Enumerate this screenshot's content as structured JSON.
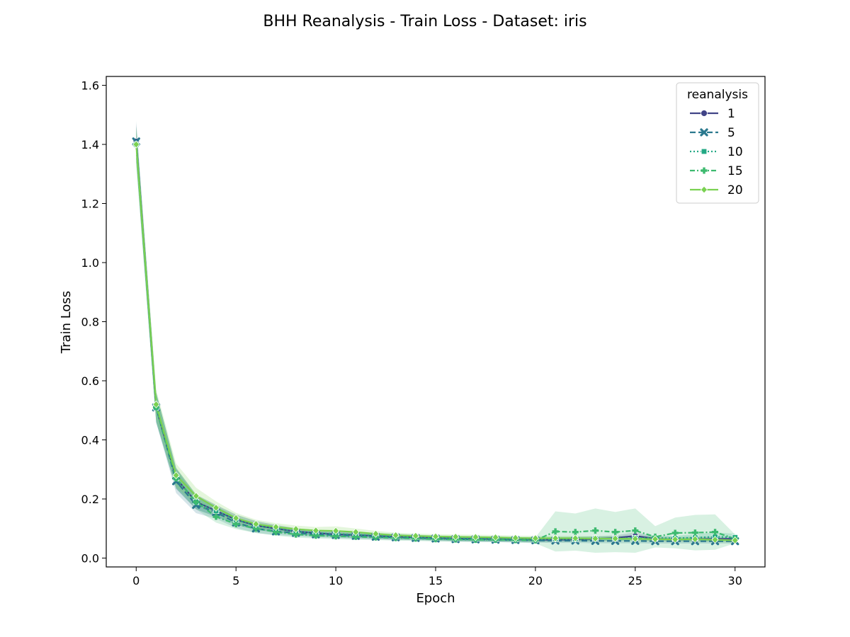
{
  "chart_data": {
    "type": "line",
    "title": "BHH Reanalysis - Train Loss - Dataset: iris",
    "xlabel": "Epoch",
    "ylabel": "Train Loss",
    "xlim": [
      -1.5,
      31.5
    ],
    "ylim": [
      -0.03,
      1.63
    ],
    "xticks": [
      0,
      5,
      10,
      15,
      20,
      25,
      30
    ],
    "yticks": [
      0.0,
      0.2,
      0.4,
      0.6,
      0.8,
      1.0,
      1.2,
      1.4,
      1.6
    ],
    "ytick_labels": [
      "0.0",
      "0.2",
      "0.4",
      "0.6",
      "0.8",
      "1.0",
      "1.2",
      "1.4",
      "1.6"
    ],
    "grid": false,
    "legend": {
      "title": "reanalysis",
      "placement": "top-right"
    },
    "x": [
      0,
      1,
      2,
      3,
      4,
      5,
      6,
      7,
      8,
      9,
      10,
      11,
      12,
      13,
      14,
      15,
      16,
      17,
      18,
      19,
      20,
      21,
      22,
      23,
      24,
      25,
      26,
      27,
      28,
      29,
      30
    ],
    "series": [
      {
        "name": "1",
        "color": "#414487",
        "dash": "solid",
        "marker": "circle",
        "values": [
          1.41,
          0.51,
          0.27,
          0.19,
          0.16,
          0.13,
          0.11,
          0.1,
          0.09,
          0.085,
          0.08,
          0.078,
          0.075,
          0.072,
          0.07,
          0.068,
          0.066,
          0.065,
          0.064,
          0.063,
          0.062,
          0.062,
          0.063,
          0.065,
          0.068,
          0.075,
          0.065,
          0.063,
          0.064,
          0.065,
          0.065
        ],
        "band": [
          0.06,
          0.05,
          0.035,
          0.025,
          0.02,
          0.017,
          0.015,
          0.012,
          0.011,
          0.01,
          0.01,
          0.01,
          0.009,
          0.009,
          0.008,
          0.008,
          0.008,
          0.008,
          0.008,
          0.008,
          0.008,
          0.008,
          0.008,
          0.008,
          0.009,
          0.012,
          0.009,
          0.008,
          0.008,
          0.008,
          0.008
        ]
      },
      {
        "name": "5",
        "color": "#2a788e",
        "dash": "dashed",
        "marker": "x",
        "values": [
          1.41,
          0.51,
          0.26,
          0.18,
          0.155,
          0.12,
          0.1,
          0.09,
          0.085,
          0.08,
          0.078,
          0.075,
          0.072,
          0.07,
          0.068,
          0.066,
          0.064,
          0.063,
          0.062,
          0.061,
          0.06,
          0.059,
          0.059,
          0.058,
          0.058,
          0.058,
          0.057,
          0.057,
          0.057,
          0.057,
          0.057
        ],
        "band": [
          0.07,
          0.05,
          0.04,
          0.028,
          0.022,
          0.018,
          0.015,
          0.012,
          0.011,
          0.01,
          0.01,
          0.01,
          0.009,
          0.009,
          0.008,
          0.008,
          0.008,
          0.008,
          0.008,
          0.008,
          0.008,
          0.008,
          0.008,
          0.008,
          0.008,
          0.008,
          0.008,
          0.008,
          0.008,
          0.008,
          0.008
        ]
      },
      {
        "name": "10",
        "color": "#22a884",
        "dash": "dotted",
        "marker": "square",
        "values": [
          1.4,
          0.51,
          0.27,
          0.19,
          0.16,
          0.13,
          0.11,
          0.1,
          0.09,
          0.085,
          0.082,
          0.079,
          0.076,
          0.073,
          0.071,
          0.069,
          0.067,
          0.066,
          0.065,
          0.064,
          0.063,
          0.064,
          0.064,
          0.066,
          0.066,
          0.068,
          0.068,
          0.067,
          0.069,
          0.072,
          0.07
        ],
        "band": [
          0.06,
          0.05,
          0.035,
          0.025,
          0.02,
          0.017,
          0.015,
          0.012,
          0.011,
          0.01,
          0.01,
          0.01,
          0.009,
          0.009,
          0.008,
          0.008,
          0.008,
          0.008,
          0.008,
          0.008,
          0.008,
          0.008,
          0.008,
          0.008,
          0.008,
          0.008,
          0.008,
          0.008,
          0.012,
          0.015,
          0.012
        ]
      },
      {
        "name": "15",
        "color": "#3dba6f",
        "dash": "dashdot",
        "marker": "plus",
        "values": [
          1.4,
          0.51,
          0.27,
          0.19,
          0.14,
          0.115,
          0.1,
          0.088,
          0.08,
          0.076,
          0.074,
          0.072,
          0.07,
          0.068,
          0.066,
          0.064,
          0.063,
          0.062,
          0.062,
          0.061,
          0.06,
          0.09,
          0.088,
          0.093,
          0.088,
          0.093,
          0.072,
          0.085,
          0.086,
          0.088,
          0.065
        ],
        "band": [
          0.06,
          0.05,
          0.035,
          0.025,
          0.02,
          0.017,
          0.015,
          0.012,
          0.011,
          0.01,
          0.01,
          0.01,
          0.009,
          0.009,
          0.008,
          0.008,
          0.008,
          0.008,
          0.008,
          0.008,
          0.01,
          0.068,
          0.063,
          0.075,
          0.068,
          0.075,
          0.036,
          0.052,
          0.06,
          0.06,
          0.015
        ]
      },
      {
        "name": "20",
        "color": "#7ad151",
        "dash": "solid",
        "marker": "diamond",
        "values": [
          1.4,
          0.52,
          0.28,
          0.21,
          0.17,
          0.135,
          0.115,
          0.105,
          0.098,
          0.093,
          0.092,
          0.088,
          0.082,
          0.077,
          0.075,
          0.073,
          0.072,
          0.071,
          0.07,
          0.068,
          0.067,
          0.067,
          0.067,
          0.066,
          0.066,
          0.065,
          0.064,
          0.063,
          0.064,
          0.062,
          0.06
        ],
        "band": [
          0.06,
          0.05,
          0.04,
          0.028,
          0.022,
          0.018,
          0.015,
          0.013,
          0.012,
          0.012,
          0.015,
          0.012,
          0.01,
          0.009,
          0.008,
          0.008,
          0.008,
          0.008,
          0.008,
          0.008,
          0.008,
          0.008,
          0.008,
          0.008,
          0.008,
          0.008,
          0.008,
          0.008,
          0.008,
          0.008,
          0.008
        ]
      }
    ]
  }
}
